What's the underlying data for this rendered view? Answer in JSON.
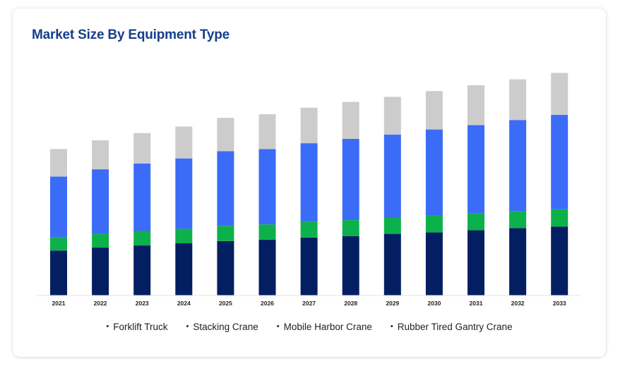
{
  "chart_data": {
    "type": "bar",
    "stacked": true,
    "title": "Market Size By Equipment Type",
    "categories": [
      "2021",
      "2022",
      "2023",
      "2024",
      "2025",
      "2026",
      "2027",
      "2028",
      "2029",
      "2030",
      "2031",
      "2032",
      "2033"
    ],
    "series": [
      {
        "name": "Forklift Truck",
        "color": "#041e62",
        "values": [
          31,
          33,
          34.5,
          36,
          37.5,
          38.5,
          40,
          41,
          42.5,
          43.5,
          45,
          46.5,
          47.5
        ]
      },
      {
        "name": "Stacking Crane",
        "color": "#0db14b",
        "values": [
          9,
          9.5,
          10,
          10,
          10.5,
          10.5,
          11,
          11,
          11,
          11.5,
          11.5,
          11.5,
          12
        ]
      },
      {
        "name": "Mobile Harbor Crane",
        "color": "#3b6cf8",
        "values": [
          42,
          44.5,
          46.5,
          48.5,
          51.5,
          52,
          54,
          56,
          57.5,
          59.5,
          61,
          63,
          65
        ]
      },
      {
        "name": "Rubber Tired Gantry Crane",
        "color": "#cccccc",
        "values": [
          19,
          20,
          21,
          22,
          23,
          24,
          24.5,
          25.5,
          26,
          26.5,
          27.5,
          28,
          29
        ]
      }
    ],
    "ylim": [
      0,
      160
    ],
    "grid": false,
    "legend_position": "bottom"
  }
}
